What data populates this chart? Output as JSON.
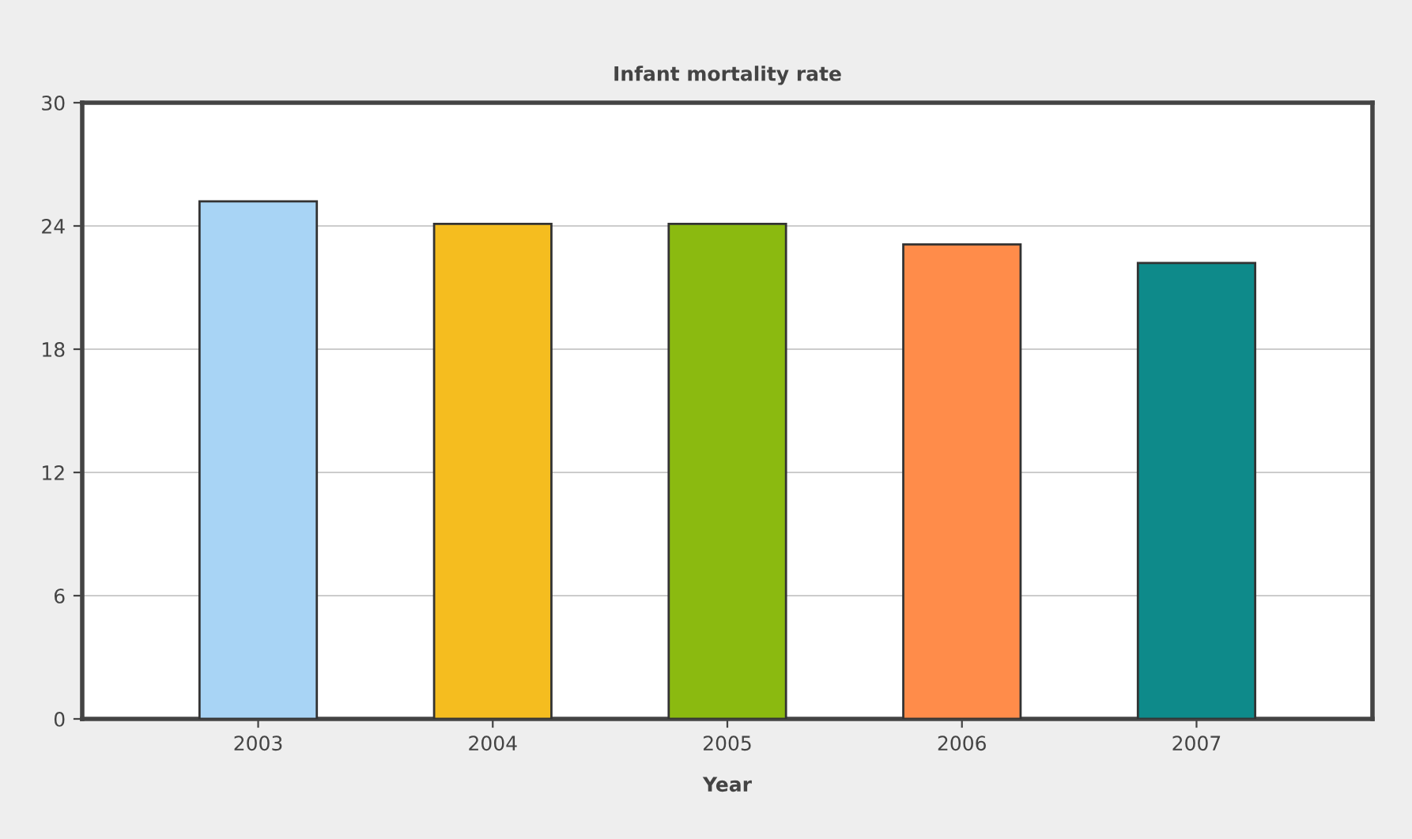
{
  "chart_data": {
    "type": "bar",
    "title": "Infant mortality rate",
    "xlabel": "Year",
    "categories": [
      "2003",
      "2004",
      "2005",
      "2006",
      "2007"
    ],
    "values": [
      25.2,
      24.1,
      24.1,
      23.1,
      22.2
    ],
    "colors": [
      "#a8d4f5",
      "#f5bd1f",
      "#8bba10",
      "#ff8c4a",
      "#0e8a8a"
    ],
    "ylim": [
      0,
      30
    ],
    "yticks": [
      0,
      6,
      12,
      18,
      24,
      30
    ],
    "grid": "y"
  }
}
